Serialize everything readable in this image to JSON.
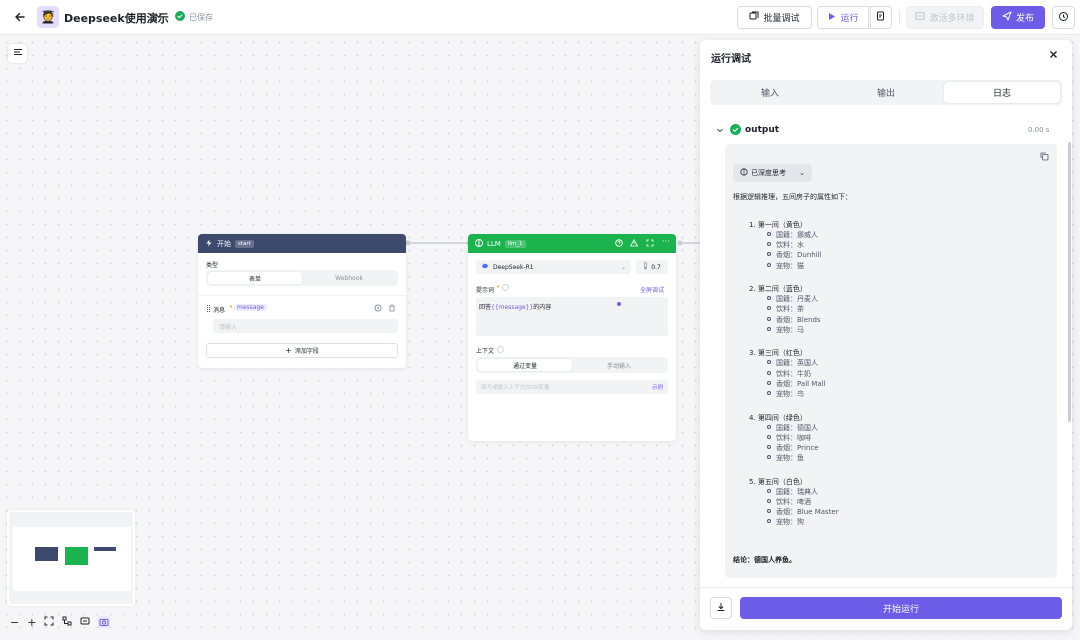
{
  "header": {
    "title": "Deepseek使用演示",
    "saved": "已保存",
    "batch_debug": "批量调试",
    "run": "运行",
    "activate_env": "激活多环境",
    "publish": "发布"
  },
  "start_node": {
    "title": "开始",
    "tag": "start",
    "type_label": "类型",
    "type_tabs": [
      "表单",
      "Webhook"
    ],
    "field_label": "消息",
    "field_tag": "message",
    "field_placeholder": "请输入",
    "add_field": "添加字段"
  },
  "llm_node": {
    "title": "LLM",
    "tag": "llm_1",
    "model": "DeepSeek-R1",
    "temperature": "0.7",
    "prompt_label": "提示词",
    "fullscreen_edit": "全屏调试",
    "prompt_prefix": "回答",
    "prompt_var": "{{message}}",
    "prompt_suffix": "的内容",
    "context_label": "上下文",
    "context_tabs": [
      "通过变量",
      "手动输入"
    ],
    "context_placeholder": "填写或输入上下文JSON变量",
    "example": "示例"
  },
  "panel": {
    "title": "运行调试",
    "tabs": [
      "输入",
      "输出",
      "日志"
    ],
    "output_label": "output",
    "time": "0.00 s",
    "thinking_label": "已深度思考",
    "intro": "根据逻辑推理，五间房子的属性如下：",
    "houses": [
      {
        "title": "1. 第一间（黄色）",
        "attrs": [
          "国籍：挪威人",
          "饮料：水",
          "香烟：Dunhill",
          "宠物：猫"
        ]
      },
      {
        "title": "2. 第二间（蓝色）",
        "attrs": [
          "国籍：丹麦人",
          "饮料：茶",
          "香烟：Blends",
          "宠物：马"
        ]
      },
      {
        "title": "3. 第三间（红色）",
        "attrs": [
          "国籍：英国人",
          "饮料：牛奶",
          "香烟：Pall Mall",
          "宠物：鸟"
        ]
      },
      {
        "title": "4. 第四间（绿色）",
        "attrs": [
          "国籍：德国人",
          "饮料：咖啡",
          "香烟：Prince",
          "宠物：鱼"
        ]
      },
      {
        "title": "5. 第五间（白色）",
        "attrs": [
          "国籍：瑞典人",
          "饮料：啤酒",
          "香烟：Blue Master",
          "宠物：狗"
        ]
      }
    ],
    "conclusion": "结论：德国人养鱼。",
    "start_run": "开始运行"
  },
  "colors": {
    "accent": "#6c5ce7",
    "start_head": "#3d4a6e",
    "llm_head": "#1ab34d",
    "success": "#1aae5a"
  }
}
